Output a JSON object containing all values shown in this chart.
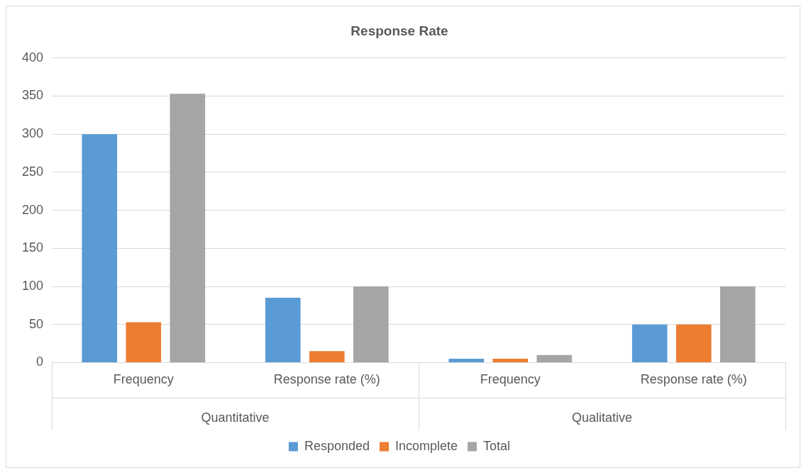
{
  "chart_data": {
    "type": "bar",
    "title": "Response Rate",
    "categories": [
      "Frequency",
      "Response rate (%)",
      "Frequency",
      "Response rate (%)"
    ],
    "annotations": [
      "Quantitative",
      "Qualitative"
    ],
    "series": [
      {
        "name": "Responded",
        "color": "#5b9bd5",
        "values": [
          300,
          85,
          5,
          50
        ]
      },
      {
        "name": "Incomplete",
        "color": "#ed7d31",
        "values": [
          53,
          15,
          5,
          50
        ]
      },
      {
        "name": "Total",
        "color": "#a5a5a5",
        "values": [
          353,
          100,
          10,
          100
        ]
      }
    ],
    "ylim": [
      0,
      400
    ],
    "yticks": [
      0,
      50,
      100,
      150,
      200,
      250,
      300,
      350,
      400
    ],
    "grid": "y",
    "legend": "bottom"
  }
}
